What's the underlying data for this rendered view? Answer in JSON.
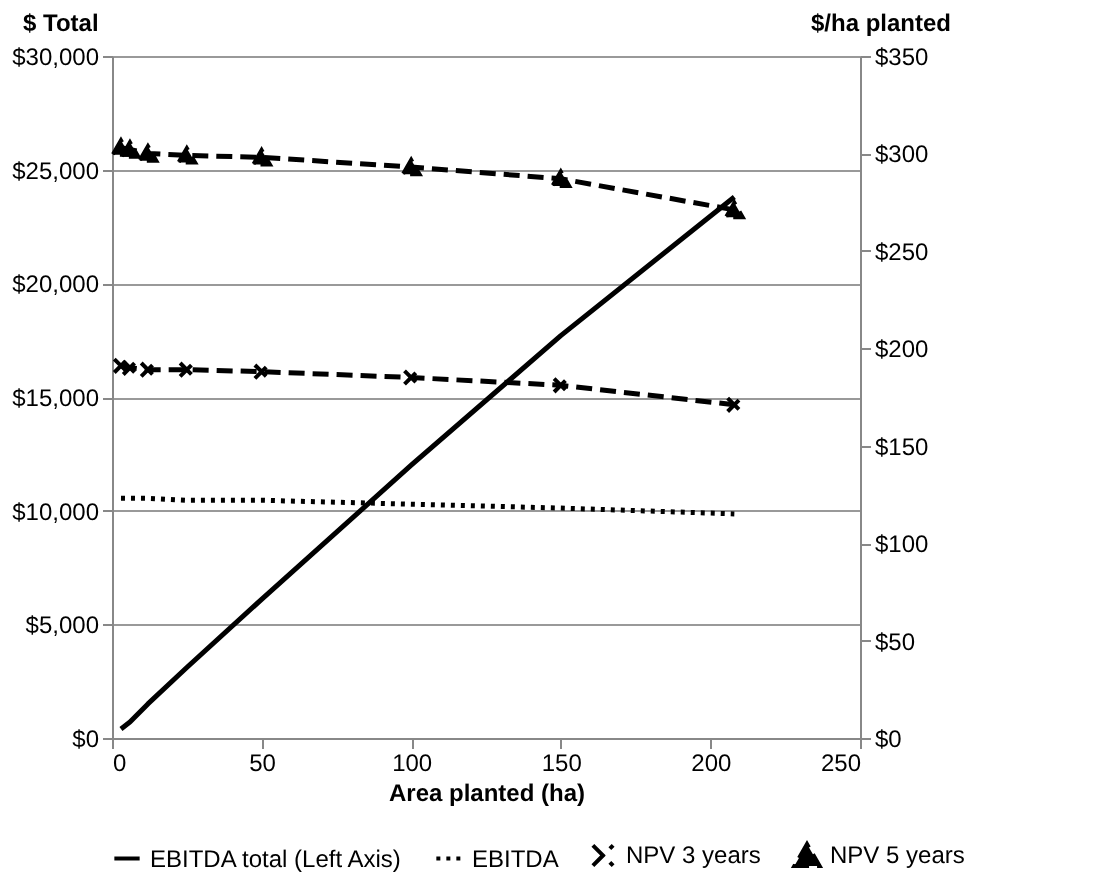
{
  "chart_data": {
    "type": "line",
    "xlabel": "Area planted (ha)",
    "ylabel": "$ Total",
    "y2label": "$/ha planted",
    "xlim": [
      0,
      250
    ],
    "xticks": [
      0,
      50,
      100,
      150,
      200,
      250
    ],
    "ylim": [
      0,
      30000
    ],
    "yticks": [
      {
        "value": 0,
        "label": "$0"
      },
      {
        "value": 5000,
        "label": "$5,000"
      },
      {
        "value": 10000,
        "label": "$10,000"
      },
      {
        "value": 15000,
        "label": "$15,000"
      },
      {
        "value": 20000,
        "label": "$20,000"
      },
      {
        "value": 25000,
        "label": "$25,000"
      },
      {
        "value": 30000,
        "label": "$30,000"
      }
    ],
    "y2lim": [
      0,
      350
    ],
    "y2ticks": [
      {
        "value": 0,
        "label": "$0"
      },
      {
        "value": 50,
        "label": "$50"
      },
      {
        "value": 100,
        "label": "$100"
      },
      {
        "value": 150,
        "label": "$150"
      },
      {
        "value": 200,
        "label": "$200"
      },
      {
        "value": 250,
        "label": "$250"
      },
      {
        "value": 300,
        "label": "$300"
      },
      {
        "value": 350,
        "label": "$350"
      }
    ],
    "x": [
      3,
      6,
      12,
      25,
      50,
      100,
      150,
      208
    ],
    "grid": "y",
    "legend": "bottom",
    "series": [
      {
        "name": "EBITDA total (Left Axis)",
        "color": "#000000",
        "line_style": "solid",
        "marker": "none",
        "values": [
          400,
          700,
          1500,
          3100,
          6100,
          12000,
          17700,
          23800
        ]
      },
      {
        "name": "EBITDA",
        "color": "#000000",
        "line_style": "dotted",
        "marker": "none",
        "axis": "y2",
        "values": [
          123,
          123,
          123,
          122,
          122,
          120,
          118,
          115
        ]
      },
      {
        "name": "NPV 3 years",
        "color": "#000000",
        "line_style": "dashed",
        "marker": "cross",
        "axis": "y2",
        "values": [
          191,
          190,
          189,
          189,
          188,
          185,
          181,
          171
        ]
      },
      {
        "name": "NPV 5 years",
        "color": "#000000",
        "line_style": "dashed",
        "marker": "triangle",
        "axis": "y2",
        "values": [
          303,
          302,
          300,
          299,
          298,
          293,
          287,
          271
        ]
      }
    ]
  }
}
